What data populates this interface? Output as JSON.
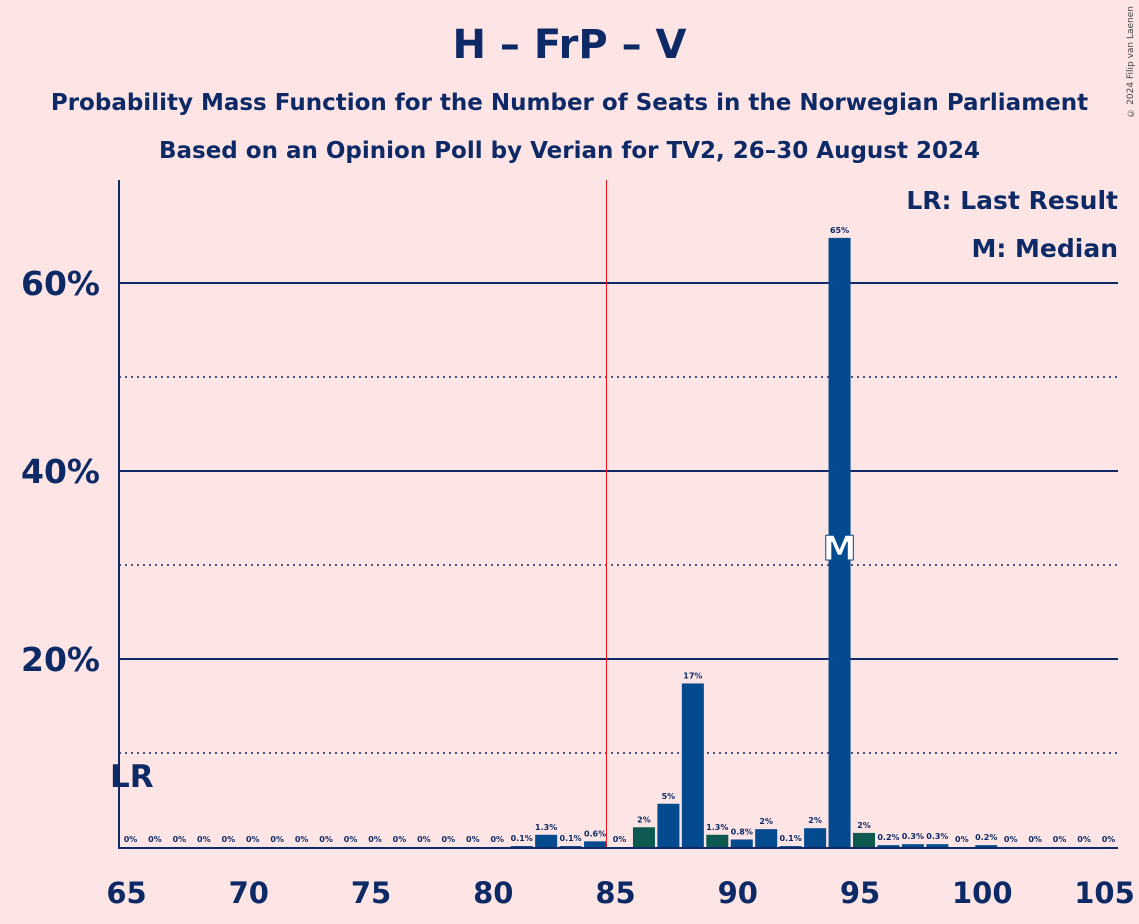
{
  "title": "H – FrP – V",
  "subtitle1": "Probability Mass Function for the Number of Seats in the Norwegian Parliament",
  "subtitle2": "Based on an Opinion Poll by Verian for TV2, 26–30 August 2024",
  "copyright": "© 2024 Filip van Laenen",
  "legend": {
    "lr": "LR: Last Result",
    "m": "M: Median"
  },
  "lr_marker": "LR",
  "median_marker": "M",
  "colors": {
    "background": "#fde4e5",
    "bar_primary": "#034a8f",
    "bar_secondary": "#0e5a50",
    "text": "#0d2a66",
    "majority_line": "#e8161c"
  },
  "chart_data": {
    "type": "bar",
    "xlim": [
      65,
      105
    ],
    "ylim": [
      0,
      70
    ],
    "x_ticks": [
      65,
      70,
      75,
      80,
      85,
      90,
      95,
      100,
      105
    ],
    "y_ticks_major": [
      20,
      40,
      60
    ],
    "y_tick_labels": [
      "20%",
      "40%",
      "60%"
    ],
    "y_ticks_minor": [
      10,
      30,
      50
    ],
    "last_result": 65,
    "majority_line": 85,
    "median": 94,
    "bars": [
      {
        "x": 65,
        "value": 0,
        "label": "0%"
      },
      {
        "x": 66,
        "value": 0,
        "label": "0%"
      },
      {
        "x": 67,
        "value": 0,
        "label": "0%"
      },
      {
        "x": 68,
        "value": 0,
        "label": "0%"
      },
      {
        "x": 69,
        "value": 0,
        "label": "0%"
      },
      {
        "x": 70,
        "value": 0,
        "label": "0%"
      },
      {
        "x": 71,
        "value": 0,
        "label": "0%"
      },
      {
        "x": 72,
        "value": 0,
        "label": "0%"
      },
      {
        "x": 73,
        "value": 0,
        "label": "0%"
      },
      {
        "x": 74,
        "value": 0,
        "label": "0%"
      },
      {
        "x": 75,
        "value": 0,
        "label": "0%"
      },
      {
        "x": 76,
        "value": 0,
        "label": "0%"
      },
      {
        "x": 77,
        "value": 0,
        "label": "0%"
      },
      {
        "x": 78,
        "value": 0,
        "label": "0%"
      },
      {
        "x": 79,
        "value": 0,
        "label": "0%"
      },
      {
        "x": 80,
        "value": 0,
        "label": "0%"
      },
      {
        "x": 81,
        "value": 0.1,
        "label": "0.1%"
      },
      {
        "x": 82,
        "value": 1.3,
        "label": "1.3%"
      },
      {
        "x": 83,
        "value": 0.1,
        "label": "0.1%"
      },
      {
        "x": 84,
        "value": 0.6,
        "label": "0.6%"
      },
      {
        "x": 85,
        "value": 0,
        "label": "0%"
      },
      {
        "x": 86,
        "value": 2.1,
        "label": "2%"
      },
      {
        "x": 87,
        "value": 4.6,
        "label": "5%"
      },
      {
        "x": 88,
        "value": 17.4,
        "label": "17%"
      },
      {
        "x": 89,
        "value": 1.3,
        "label": "1.3%"
      },
      {
        "x": 90,
        "value": 0.8,
        "label": "0.8%"
      },
      {
        "x": 91,
        "value": 1.9,
        "label": "2%"
      },
      {
        "x": 92,
        "value": 0.1,
        "label": "0.1%"
      },
      {
        "x": 93,
        "value": 2.0,
        "label": "2%"
      },
      {
        "x": 94,
        "value": 64.8,
        "label": "65%"
      },
      {
        "x": 95,
        "value": 1.5,
        "label": "2%"
      },
      {
        "x": 96,
        "value": 0.2,
        "label": "0.2%"
      },
      {
        "x": 97,
        "value": 0.3,
        "label": "0.3%"
      },
      {
        "x": 98,
        "value": 0.3,
        "label": "0.3%"
      },
      {
        "x": 99,
        "value": 0,
        "label": "0%"
      },
      {
        "x": 100,
        "value": 0.2,
        "label": "0.2%"
      },
      {
        "x": 101,
        "value": 0,
        "label": "0%"
      },
      {
        "x": 102,
        "value": 0,
        "label": "0%"
      },
      {
        "x": 103,
        "value": 0,
        "label": "0%"
      },
      {
        "x": 104,
        "value": 0,
        "label": "0%"
      },
      {
        "x": 105,
        "value": 0,
        "label": "0%"
      }
    ],
    "secondary_color_x": [
      86,
      89,
      95
    ]
  }
}
